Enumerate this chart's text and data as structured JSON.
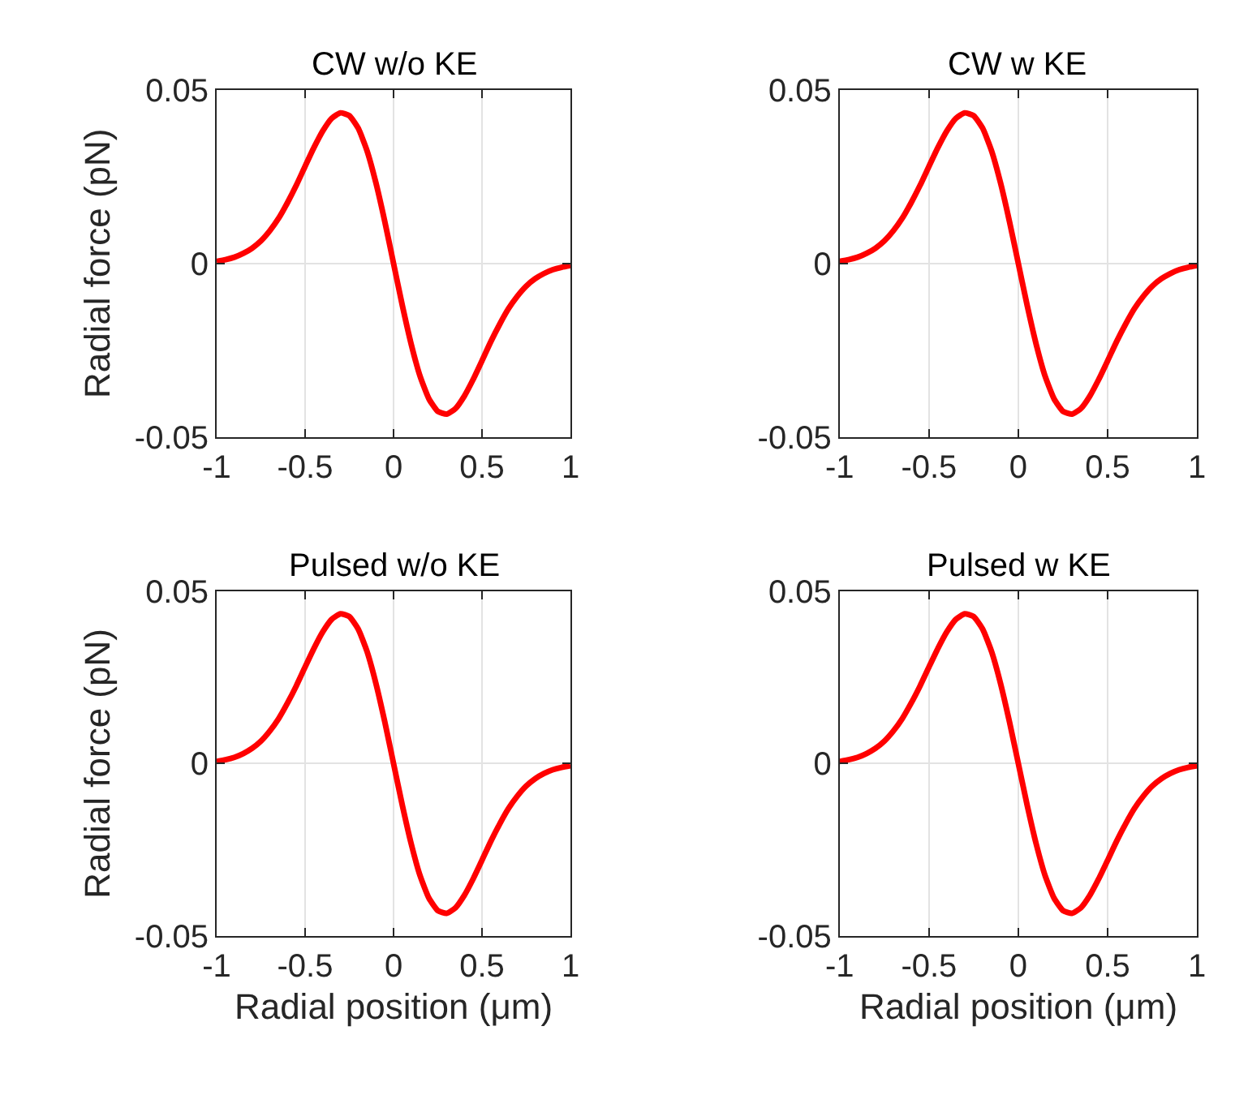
{
  "chart_data": [
    {
      "type": "line",
      "title": "CW w/o KE",
      "ylabel": "Radial force (pN)",
      "x": [
        -1,
        -0.95,
        -0.9,
        -0.85,
        -0.8,
        -0.75,
        -0.7,
        -0.65,
        -0.6,
        -0.55,
        -0.5,
        -0.45,
        -0.4,
        -0.35,
        -0.3,
        -0.25,
        -0.2,
        -0.15,
        -0.1,
        -0.05,
        0,
        0.05,
        0.1,
        0.15,
        0.2,
        0.25,
        0.3,
        0.35,
        0.4,
        0.45,
        0.5,
        0.55,
        0.6,
        0.65,
        0.7,
        0.75,
        0.8,
        0.85,
        0.9,
        0.95,
        1
      ],
      "series": [
        {
          "color": "#ff0000",
          "values": [
            0.0006,
            0.0011,
            0.0018,
            0.0029,
            0.0044,
            0.0065,
            0.0094,
            0.013,
            0.0175,
            0.0225,
            0.028,
            0.0334,
            0.0382,
            0.0418,
            0.0434,
            0.0426,
            0.039,
            0.0325,
            0.0233,
            0.0122,
            0,
            -0.0122,
            -0.0233,
            -0.0325,
            -0.039,
            -0.0426,
            -0.0434,
            -0.0418,
            -0.0382,
            -0.0334,
            -0.028,
            -0.0225,
            -0.0175,
            -0.013,
            -0.0094,
            -0.0065,
            -0.0044,
            -0.0029,
            -0.0018,
            -0.0011,
            -0.0006
          ]
        }
      ],
      "xlim": [
        -1,
        1
      ],
      "xticks": [
        -1,
        -0.5,
        0,
        0.5,
        1
      ],
      "ylim": [
        -0.05,
        0.05
      ],
      "yticks": [
        -0.05,
        0,
        0.05
      ],
      "grid": true,
      "line_style": "solid"
    },
    {
      "type": "line",
      "title": "CW w KE",
      "x": [
        -1,
        -0.95,
        -0.9,
        -0.85,
        -0.8,
        -0.75,
        -0.7,
        -0.65,
        -0.6,
        -0.55,
        -0.5,
        -0.45,
        -0.4,
        -0.35,
        -0.3,
        -0.25,
        -0.2,
        -0.15,
        -0.1,
        -0.05,
        0,
        0.05,
        0.1,
        0.15,
        0.2,
        0.25,
        0.3,
        0.35,
        0.4,
        0.45,
        0.5,
        0.55,
        0.6,
        0.65,
        0.7,
        0.75,
        0.8,
        0.85,
        0.9,
        0.95,
        1
      ],
      "series": [
        {
          "color": "#ff0000",
          "values": [
            0.0006,
            0.0011,
            0.0018,
            0.0029,
            0.0044,
            0.0065,
            0.0094,
            0.013,
            0.0175,
            0.0225,
            0.028,
            0.0334,
            0.0382,
            0.0418,
            0.0434,
            0.0426,
            0.039,
            0.0325,
            0.0233,
            0.0122,
            0,
            -0.0122,
            -0.0233,
            -0.0325,
            -0.039,
            -0.0426,
            -0.0434,
            -0.0418,
            -0.0382,
            -0.0334,
            -0.028,
            -0.0225,
            -0.0175,
            -0.013,
            -0.0094,
            -0.0065,
            -0.0044,
            -0.0029,
            -0.0018,
            -0.0011,
            -0.0006
          ]
        }
      ],
      "xlim": [
        -1,
        1
      ],
      "xticks": [
        -1,
        -0.5,
        0,
        0.5,
        1
      ],
      "ylim": [
        -0.05,
        0.05
      ],
      "yticks": [
        -0.05,
        0,
        0.05
      ],
      "grid": true,
      "line_style": "solid"
    },
    {
      "type": "line",
      "title": "Pulsed w/o KE",
      "xlabel": "Radial position (μm)",
      "ylabel": "Radial force (pN)",
      "x": [
        -1,
        -0.95,
        -0.9,
        -0.85,
        -0.8,
        -0.75,
        -0.7,
        -0.65,
        -0.6,
        -0.55,
        -0.5,
        -0.45,
        -0.4,
        -0.35,
        -0.3,
        -0.25,
        -0.2,
        -0.15,
        -0.1,
        -0.05,
        0,
        0.05,
        0.1,
        0.15,
        0.2,
        0.25,
        0.3,
        0.35,
        0.4,
        0.45,
        0.5,
        0.55,
        0.6,
        0.65,
        0.7,
        0.75,
        0.8,
        0.85,
        0.9,
        0.95,
        1
      ],
      "series": [
        {
          "color": "#ff0000",
          "values": [
            0.0006,
            0.0011,
            0.0018,
            0.0029,
            0.0044,
            0.0065,
            0.0094,
            0.013,
            0.0175,
            0.0225,
            0.028,
            0.0334,
            0.0382,
            0.0418,
            0.0434,
            0.0426,
            0.039,
            0.0325,
            0.0233,
            0.0122,
            0,
            -0.0122,
            -0.0233,
            -0.0325,
            -0.039,
            -0.0426,
            -0.0434,
            -0.0418,
            -0.0382,
            -0.0334,
            -0.028,
            -0.0225,
            -0.0175,
            -0.013,
            -0.0094,
            -0.0065,
            -0.0044,
            -0.0029,
            -0.0018,
            -0.0011,
            -0.0006
          ]
        }
      ],
      "xlim": [
        -1,
        1
      ],
      "xticks": [
        -1,
        -0.5,
        0,
        0.5,
        1
      ],
      "ylim": [
        -0.05,
        0.05
      ],
      "yticks": [
        -0.05,
        0,
        0.05
      ],
      "grid": true,
      "line_style": "solid"
    },
    {
      "type": "line",
      "title": "Pulsed w KE",
      "xlabel": "Radial position (μm)",
      "x": [
        -1,
        -0.95,
        -0.9,
        -0.85,
        -0.8,
        -0.75,
        -0.7,
        -0.65,
        -0.6,
        -0.55,
        -0.5,
        -0.45,
        -0.4,
        -0.35,
        -0.3,
        -0.25,
        -0.2,
        -0.15,
        -0.1,
        -0.05,
        0,
        0.05,
        0.1,
        0.15,
        0.2,
        0.25,
        0.3,
        0.35,
        0.4,
        0.45,
        0.5,
        0.55,
        0.6,
        0.65,
        0.7,
        0.75,
        0.8,
        0.85,
        0.9,
        0.95,
        1
      ],
      "series": [
        {
          "color": "#ff0000",
          "values": [
            0.0006,
            0.0011,
            0.0018,
            0.0029,
            0.0044,
            0.0065,
            0.0094,
            0.013,
            0.0175,
            0.0225,
            0.028,
            0.0334,
            0.0382,
            0.0418,
            0.0434,
            0.0426,
            0.039,
            0.0325,
            0.0233,
            0.0122,
            0,
            -0.0122,
            -0.0233,
            -0.0325,
            -0.039,
            -0.0426,
            -0.0434,
            -0.0418,
            -0.0382,
            -0.0334,
            -0.028,
            -0.0225,
            -0.0175,
            -0.013,
            -0.0094,
            -0.0065,
            -0.0044,
            -0.0029,
            -0.0018,
            -0.0011,
            -0.0006
          ]
        }
      ],
      "xlim": [
        -1,
        1
      ],
      "xticks": [
        -1,
        -0.5,
        0,
        0.5,
        1
      ],
      "ylim": [
        -0.05,
        0.05
      ],
      "yticks": [
        -0.05,
        0,
        0.05
      ],
      "grid": true,
      "line_style": "solid"
    }
  ]
}
